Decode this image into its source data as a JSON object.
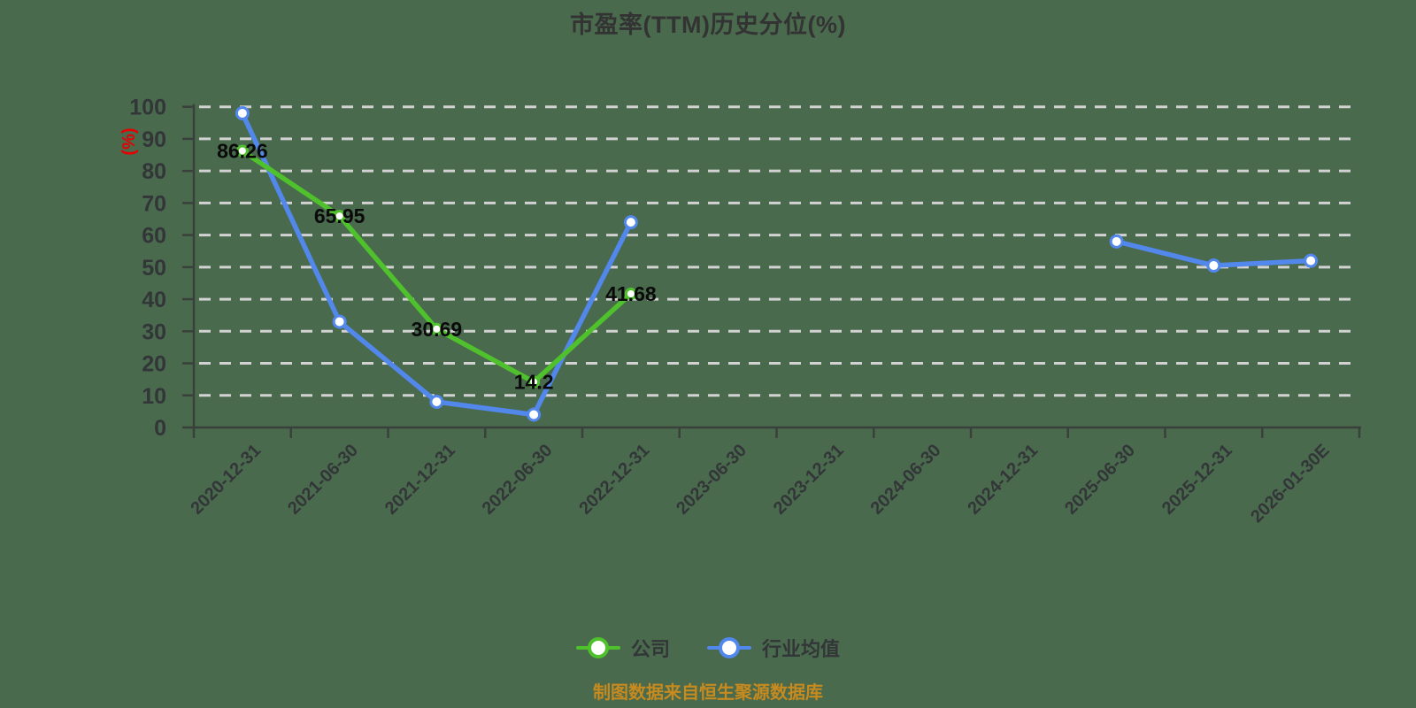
{
  "page": {
    "background": "#4a6a4d"
  },
  "colors": {
    "title": "#333333",
    "axis": "#3a403c",
    "axis_label": "#333638",
    "grid": "#d2d2d2",
    "value_label": "#0a0a0a",
    "y_axis_name": "#e60000",
    "source_note": "#c68a1e",
    "company": "#4fc12c",
    "industry": "#5287ec",
    "point_fill": "#ffffff"
  },
  "chart_data": {
    "type": "line",
    "title": "市盈率(TTM)历史分位(%)",
    "y_axis_name": "(%)",
    "ylim": [
      0,
      100
    ],
    "y_tick_step": 10,
    "grid": "horizontal-dashed",
    "legend_position": "bottom",
    "x_label_rotate": 45,
    "categories": [
      "2020-12-31",
      "2021-06-30",
      "2021-12-31",
      "2022-06-30",
      "2022-12-31",
      "2023-06-30",
      "2023-12-31",
      "2024-06-30",
      "2024-12-31",
      "2025-06-30",
      "2025-12-31",
      "2026-01-30E"
    ],
    "series": [
      {
        "name": "公司",
        "color": "#4fc12c",
        "values": [
          86.26,
          65.95,
          30.69,
          14.2,
          41.68,
          null,
          null,
          null,
          null,
          null,
          null,
          null
        ],
        "point_labels": [
          "86.26",
          "65.95",
          "30.69",
          "14.2",
          "41.68",
          null,
          null,
          null,
          null,
          null,
          null,
          null
        ]
      },
      {
        "name": "行业均值",
        "color": "#5287ec",
        "values": [
          98,
          33,
          8,
          4,
          64,
          null,
          null,
          null,
          null,
          58,
          50.5,
          52
        ],
        "point_labels": null
      }
    ],
    "source_note": "制图数据来自恒生聚源数据库"
  }
}
